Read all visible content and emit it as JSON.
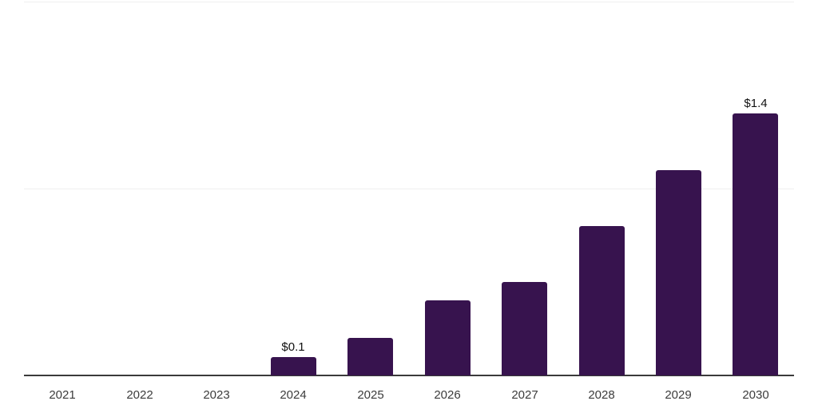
{
  "chart_data": {
    "type": "bar",
    "title": "",
    "xlabel": "",
    "ylabel": "",
    "categories": [
      "2021",
      "2022",
      "2023",
      "2024",
      "2025",
      "2026",
      "2027",
      "2028",
      "2029",
      "2030"
    ],
    "values": [
      0,
      0,
      0,
      0.1,
      0.2,
      0.4,
      0.5,
      0.8,
      1.1,
      1.4
    ],
    "data_labels": [
      "",
      "",
      "",
      "$0.1",
      "",
      "",
      "",
      "",
      "",
      "$1.4"
    ],
    "ylim": [
      0,
      2
    ],
    "gridline_values": [
      1,
      2
    ],
    "grid": true,
    "legend": false,
    "colors": {
      "bar": "#37134e",
      "axis_line": "#3a3a3a",
      "gridline": "#efefef",
      "tick_label": "#3c3c3c",
      "data_label": "#111111",
      "background": "#ffffff"
    }
  }
}
